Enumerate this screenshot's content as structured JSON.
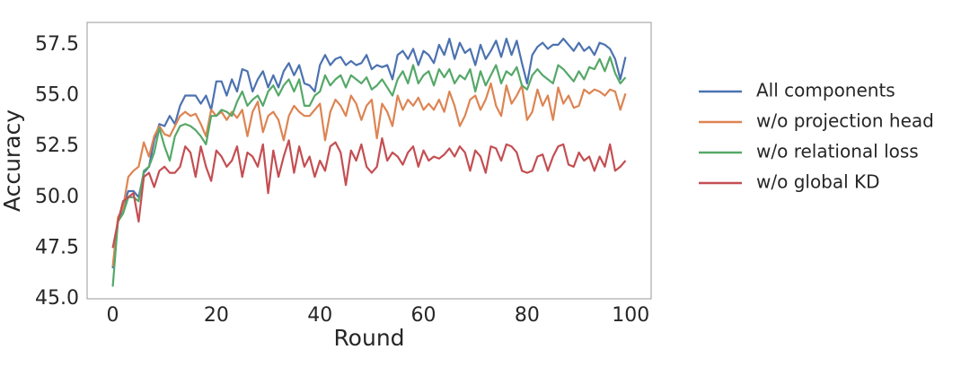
{
  "chart_data": {
    "type": "line",
    "x_label": "Round",
    "y_label": "Accuracy",
    "x": [
      0,
      1,
      2,
      3,
      4,
      5,
      6,
      7,
      8,
      9,
      10,
      11,
      12,
      13,
      14,
      15,
      16,
      17,
      18,
      19,
      20,
      21,
      22,
      23,
      24,
      25,
      26,
      27,
      28,
      29,
      30,
      31,
      32,
      33,
      34,
      35,
      36,
      37,
      38,
      39,
      40,
      41,
      42,
      43,
      44,
      45,
      46,
      47,
      48,
      49,
      50,
      51,
      52,
      53,
      54,
      55,
      56,
      57,
      58,
      59,
      60,
      61,
      62,
      63,
      64,
      65,
      66,
      67,
      68,
      69,
      70,
      71,
      72,
      73,
      74,
      75,
      76,
      77,
      78,
      79,
      80,
      81,
      82,
      83,
      84,
      85,
      86,
      87,
      88,
      89,
      90,
      91,
      92,
      93,
      94,
      95,
      96,
      97,
      98,
      99
    ],
    "xlim": [
      -4.95,
      103.95
    ],
    "xticks": [
      0,
      20,
      40,
      60,
      80,
      100
    ],
    "ylim": [
      45.0,
      58.6
    ],
    "yticks": [
      {
        "value": 45,
        "label": "45.0"
      },
      {
        "value": 47.5,
        "label": "47.5"
      },
      {
        "value": 50,
        "label": "50.0"
      },
      {
        "value": 52.5,
        "label": "52.5"
      },
      {
        "value": 55,
        "label": "55.0"
      },
      {
        "value": 57.5,
        "label": "57.5"
      }
    ],
    "grid": false,
    "legend": "outside-right",
    "series": [
      {
        "name": "All components",
        "color": "#4c72b0",
        "values": [
          46.5,
          48.8,
          49.5,
          50.3,
          50.3,
          50.0,
          51.2,
          51.5,
          52.8,
          53.6,
          53.5,
          54.0,
          53.6,
          54.5,
          55.0,
          55.0,
          55.0,
          54.6,
          55.0,
          54.3,
          55.7,
          55.7,
          55.0,
          55.8,
          55.2,
          56.3,
          56.2,
          55.2,
          55.8,
          56.2,
          55.4,
          56.0,
          55.4,
          56.2,
          56.6,
          56.0,
          56.5,
          55.6,
          55.5,
          55.2,
          56.5,
          57.0,
          56.5,
          56.8,
          56.9,
          56.5,
          56.7,
          56.5,
          56.6,
          57.0,
          56.3,
          56.5,
          56.4,
          56.5,
          55.8,
          57.0,
          57.2,
          56.8,
          57.3,
          56.5,
          57.2,
          57.0,
          56.6,
          57.5,
          57.0,
          57.8,
          56.8,
          57.6,
          57.1,
          57.3,
          56.5,
          57.5,
          56.8,
          57.2,
          57.7,
          56.9,
          57.8,
          57.0,
          57.7,
          56.6,
          55.6,
          57.0,
          57.4,
          57.6,
          57.3,
          57.5,
          57.5,
          57.8,
          57.5,
          57.2,
          57.6,
          57.2,
          57.4,
          57.0,
          57.6,
          57.5,
          57.3,
          56.8,
          55.8,
          56.9
        ]
      },
      {
        "name": "w/o projection head",
        "color": "#dd8452",
        "values": [
          46.6,
          49.0,
          49.5,
          51.0,
          51.3,
          51.5,
          52.7,
          52.0,
          53.0,
          53.5,
          53.1,
          53.0,
          53.5,
          54.0,
          54.2,
          54.0,
          54.1,
          53.6,
          53.0,
          54.3,
          54.0,
          54.2,
          53.8,
          54.2,
          53.9,
          54.3,
          53.0,
          54.2,
          54.7,
          53.2,
          54.0,
          54.2,
          53.8,
          52.8,
          54.0,
          54.5,
          54.2,
          54.0,
          54.0,
          54.3,
          54.6,
          52.8,
          54.2,
          54.8,
          54.5,
          54.0,
          55.0,
          54.6,
          53.8,
          54.5,
          54.8,
          52.9,
          54.6,
          54.2,
          53.5,
          55.0,
          54.3,
          54.8,
          54.5,
          54.9,
          54.3,
          54.6,
          54.3,
          54.8,
          54.2,
          55.2,
          54.5,
          53.5,
          54.0,
          54.8,
          55.0,
          54.3,
          54.8,
          55.6,
          54.5,
          54.0,
          55.5,
          54.6,
          55.0,
          55.5,
          53.8,
          54.2,
          55.3,
          54.5,
          55.0,
          53.8,
          55.4,
          54.6,
          55.0,
          54.4,
          54.5,
          55.3,
          55.1,
          55.3,
          55.2,
          55.0,
          55.3,
          55.2,
          54.3,
          55.1
        ]
      },
      {
        "name": "w/o relational loss",
        "color": "#55a868",
        "values": [
          45.6,
          48.8,
          49.2,
          50.0,
          50.0,
          49.8,
          51.3,
          51.5,
          52.2,
          53.4,
          52.5,
          51.8,
          53.0,
          53.5,
          53.6,
          53.5,
          53.3,
          53.0,
          52.6,
          54.0,
          54.0,
          54.3,
          54.2,
          54.0,
          54.7,
          55.2,
          54.5,
          54.8,
          55.0,
          54.5,
          55.2,
          55.5,
          55.0,
          55.5,
          55.8,
          55.2,
          55.8,
          54.5,
          54.5,
          55.0,
          55.2,
          56.0,
          55.5,
          55.8,
          56.0,
          55.4,
          56.0,
          55.8,
          55.6,
          55.9,
          55.3,
          55.5,
          55.8,
          55.4,
          55.0,
          55.8,
          56.2,
          55.6,
          56.5,
          55.6,
          56.0,
          56.2,
          55.5,
          56.3,
          55.9,
          56.3,
          55.6,
          56.0,
          55.8,
          56.3,
          55.2,
          56.2,
          55.5,
          56.0,
          56.5,
          55.6,
          56.2,
          56.0,
          56.4,
          55.5,
          55.3,
          56.0,
          56.3,
          56.0,
          55.8,
          55.6,
          56.5,
          56.3,
          56.0,
          55.7,
          56.2,
          55.8,
          56.4,
          56.3,
          56.8,
          56.2,
          56.9,
          56.1,
          55.6,
          55.9
        ]
      },
      {
        "name": "w/o global KD",
        "color": "#c44e52",
        "values": [
          47.5,
          48.8,
          49.8,
          50.0,
          50.2,
          48.8,
          51.0,
          51.2,
          50.5,
          51.3,
          51.5,
          51.2,
          51.2,
          51.5,
          52.5,
          52.2,
          51.0,
          52.5,
          51.5,
          50.8,
          52.3,
          52.0,
          51.5,
          51.8,
          52.5,
          51.0,
          52.2,
          52.0,
          51.5,
          52.6,
          50.2,
          52.3,
          51.0,
          52.0,
          52.8,
          51.2,
          52.5,
          51.5,
          52.0,
          51.0,
          51.8,
          51.3,
          52.5,
          52.7,
          52.2,
          50.6,
          52.3,
          51.8,
          52.6,
          51.5,
          51.2,
          51.5,
          52.9,
          51.8,
          52.2,
          52.0,
          51.6,
          52.2,
          52.5,
          51.5,
          52.3,
          51.8,
          52.0,
          51.9,
          52.1,
          52.4,
          52.0,
          52.5,
          52.2,
          51.3,
          52.3,
          52.0,
          51.2,
          52.5,
          52.4,
          51.8,
          52.6,
          52.5,
          52.2,
          51.3,
          51.2,
          51.3,
          52.0,
          52.1,
          51.3,
          52.0,
          52.5,
          52.6,
          51.6,
          51.5,
          52.2,
          51.8,
          52.0,
          51.3,
          52.0,
          51.5,
          52.6,
          51.3,
          51.5,
          51.8
        ]
      }
    ]
  }
}
